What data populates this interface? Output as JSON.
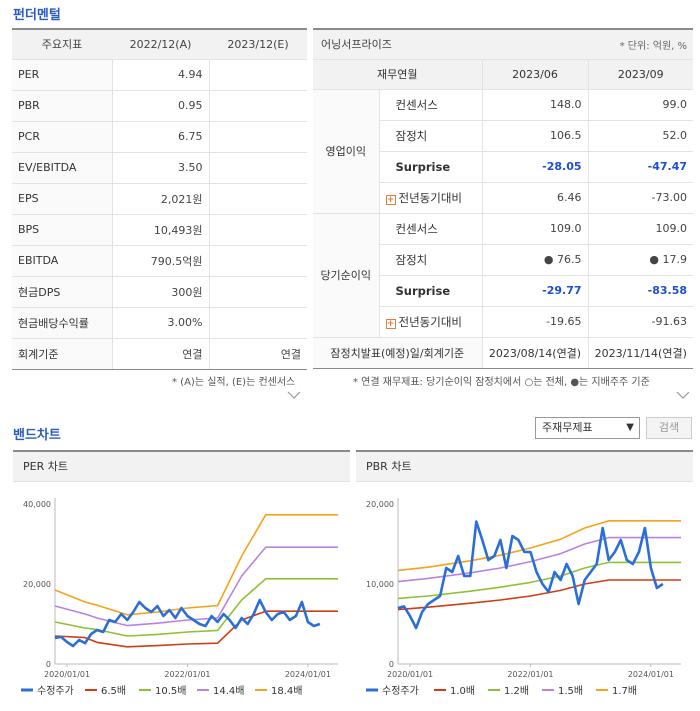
{
  "fundamental": {
    "title": "펀더멘털",
    "headers": [
      "주요지표",
      "2022/12(A)",
      "2023/12(E)"
    ],
    "rows": [
      {
        "label": "PER",
        "v1": "4.94",
        "v2": ""
      },
      {
        "label": "PBR",
        "v1": "0.95",
        "v2": ""
      },
      {
        "label": "PCR",
        "v1": "6.75",
        "v2": ""
      },
      {
        "label": "EV/EBITDA",
        "v1": "3.50",
        "v2": ""
      },
      {
        "label": "EPS",
        "v1": "2,021원",
        "v2": ""
      },
      {
        "label": "BPS",
        "v1": "10,493원",
        "v2": ""
      },
      {
        "label": "EBITDA",
        "v1": "790.5억원",
        "v2": ""
      },
      {
        "label": "현금DPS",
        "v1": "300원",
        "v2": ""
      },
      {
        "label": "현금배당수익률",
        "v1": "3.00%",
        "v2": ""
      },
      {
        "label": "회계기준",
        "v1": "연결",
        "v2": "연결"
      }
    ],
    "note": "* (A)는 실적, (E)는 컨센서스"
  },
  "earnings": {
    "title": "어닝서프라이즈",
    "unit": "* 단위: 억원, %",
    "subheaders": [
      "재무연월",
      "2023/06",
      "2023/09"
    ],
    "groups": [
      {
        "name": "영업이익",
        "rows": [
          {
            "item": "컨센서스",
            "v1": "148.0",
            "v2": "99.0",
            "kind": "plain"
          },
          {
            "item": "잠정치",
            "v1": "106.5",
            "v2": "52.0",
            "kind": "plain"
          },
          {
            "item": "Surprise",
            "v1": "-28.05",
            "v2": "-47.47",
            "kind": "surprise"
          },
          {
            "item": "전년동기대비",
            "v1": "6.46",
            "v2": "-73.00",
            "kind": "yoy"
          }
        ]
      },
      {
        "name": "당기순이익",
        "rows": [
          {
            "item": "컨센서스",
            "v1": "109.0",
            "v2": "109.0",
            "kind": "plain"
          },
          {
            "item": "잠정치",
            "v1": "● 76.5",
            "v2": "● 17.9",
            "kind": "plain"
          },
          {
            "item": "Surprise",
            "v1": "-29.77",
            "v2": "-83.58",
            "kind": "surprise"
          },
          {
            "item": "전년동기대비",
            "v1": "-19.65",
            "v2": "-91.63",
            "kind": "yoy"
          }
        ]
      }
    ],
    "footer": {
      "label": "잠정치발표(예정)일/회계기준",
      "v1": "2023/08/14(연결)",
      "v2": "2023/11/14(연결)"
    },
    "note": "* 연결 재무제표: 당기순이익 잠정치에서 ○는 전체, ●는 지배주주 기준"
  },
  "band": {
    "title": "밴드차트",
    "select_value": "주재무제표",
    "search_label": "검색"
  },
  "chart_data": [
    {
      "type": "line",
      "title": "PER 차트",
      "x_ticks": [
        "2020/01/01",
        "2022/01/01",
        "2024/01/01"
      ],
      "x_tick_years": [
        2020,
        2022,
        2024
      ],
      "xlim": [
        2019.8,
        2024.5
      ],
      "ylim": [
        0,
        40000
      ],
      "y_ticks": [
        "0",
        "20,000",
        "40,000"
      ],
      "y_tick_values": [
        0,
        20000,
        40000
      ],
      "legend_position": "bottom",
      "series": [
        {
          "name": "수정주가",
          "color": "#2b6fd6",
          "width": 2.6,
          "x": [
            2019.8,
            2019.9,
            2020.0,
            2020.1,
            2020.2,
            2020.3,
            2020.4,
            2020.5,
            2020.6,
            2020.7,
            2020.8,
            2020.9,
            2021.0,
            2021.1,
            2021.2,
            2021.3,
            2021.4,
            2021.5,
            2021.6,
            2021.7,
            2021.8,
            2021.9,
            2022.0,
            2022.1,
            2022.2,
            2022.3,
            2022.4,
            2022.5,
            2022.6,
            2022.7,
            2022.8,
            2022.9,
            2023.0,
            2023.1,
            2023.2,
            2023.3,
            2023.4,
            2023.5,
            2023.6,
            2023.7,
            2023.8,
            2023.9,
            2024.0,
            2024.1,
            2024.2
          ],
          "values": [
            6500,
            6800,
            5500,
            4500,
            6000,
            5200,
            7500,
            8500,
            8000,
            11000,
            10500,
            12500,
            11000,
            13000,
            15500,
            14000,
            13000,
            14500,
            12000,
            13500,
            11500,
            14000,
            12000,
            11000,
            10000,
            9500,
            12000,
            10500,
            12500,
            11000,
            9000,
            11500,
            10000,
            12500,
            16000,
            13000,
            11000,
            12500,
            13000,
            11000,
            12000,
            15500,
            10500,
            9500,
            10000
          ]
        },
        {
          "name": "6.5배",
          "color": "#d23c12",
          "width": 1.6,
          "x": [
            2019.8,
            2020.3,
            2020.5,
            2021.0,
            2021.5,
            2022.0,
            2022.5,
            2022.9,
            2023.3,
            2024.5
          ],
          "values": [
            7000,
            6600,
            5400,
            4300,
            4600,
            5000,
            5200,
            11000,
            13200,
            13200
          ]
        },
        {
          "name": "10.5배",
          "color": "#8fc232",
          "width": 1.6,
          "x": [
            2019.8,
            2020.3,
            2020.5,
            2021.0,
            2021.5,
            2022.0,
            2022.5,
            2022.9,
            2023.3,
            2024.5
          ],
          "values": [
            10500,
            9000,
            8600,
            7000,
            7400,
            8000,
            8400,
            16000,
            21300,
            21300
          ]
        },
        {
          "name": "14.4배",
          "color": "#b883e0",
          "width": 1.6,
          "x": [
            2019.8,
            2020.3,
            2020.5,
            2021.0,
            2021.5,
            2022.0,
            2022.5,
            2022.9,
            2023.3,
            2024.5
          ],
          "values": [
            14500,
            12500,
            11500,
            9600,
            10200,
            11000,
            11500,
            22000,
            29200,
            29200
          ]
        },
        {
          "name": "18.4배",
          "color": "#f7a21b",
          "width": 1.6,
          "x": [
            2019.8,
            2020.3,
            2020.5,
            2021.0,
            2021.5,
            2022.0,
            2022.5,
            2022.9,
            2023.3,
            2024.5
          ],
          "values": [
            18500,
            15500,
            14700,
            12300,
            13000,
            14000,
            14600,
            27000,
            37300,
            37300
          ]
        }
      ]
    },
    {
      "type": "line",
      "title": "PBR 차트",
      "x_ticks": [
        "2020/01/01",
        "2022/01/01",
        "2024/01/01"
      ],
      "x_tick_years": [
        2020,
        2022,
        2024
      ],
      "xlim": [
        2019.8,
        2024.5
      ],
      "ylim": [
        0,
        20000
      ],
      "y_ticks": [
        "0",
        "10,000",
        "20,000"
      ],
      "y_tick_values": [
        0,
        10000,
        20000
      ],
      "legend_position": "bottom",
      "series": [
        {
          "name": "수정주가",
          "color": "#2b6fd6",
          "width": 2.6,
          "x": [
            2019.8,
            2019.9,
            2020.0,
            2020.1,
            2020.2,
            2020.3,
            2020.4,
            2020.5,
            2020.6,
            2020.7,
            2020.8,
            2020.9,
            2021.0,
            2021.1,
            2021.2,
            2021.3,
            2021.4,
            2021.5,
            2021.6,
            2021.7,
            2021.8,
            2021.9,
            2022.0,
            2022.1,
            2022.2,
            2022.3,
            2022.4,
            2022.5,
            2022.6,
            2022.7,
            2022.8,
            2022.9,
            2023.0,
            2023.1,
            2023.2,
            2023.3,
            2023.4,
            2023.5,
            2023.6,
            2023.7,
            2023.8,
            2023.9,
            2024.0,
            2024.1,
            2024.2
          ],
          "values": [
            7000,
            7200,
            6000,
            4500,
            6500,
            7500,
            8000,
            8500,
            12000,
            11500,
            13500,
            11000,
            11000,
            17800,
            15500,
            13000,
            13500,
            15500,
            12000,
            16000,
            15500,
            14000,
            14000,
            11500,
            10000,
            9000,
            11500,
            10500,
            12500,
            11000,
            7500,
            10500,
            11500,
            12500,
            17000,
            13000,
            14000,
            15500,
            13000,
            12500,
            14000,
            17000,
            12000,
            9500,
            10000
          ]
        },
        {
          "name": "1.0배",
          "color": "#d23c12",
          "width": 1.6,
          "x": [
            2019.8,
            2020.3,
            2021.0,
            2021.5,
            2022.0,
            2022.5,
            2022.9,
            2023.3,
            2024.5
          ],
          "values": [
            6800,
            7100,
            7600,
            8000,
            8500,
            9200,
            10000,
            10500,
            10500
          ]
        },
        {
          "name": "1.2배",
          "color": "#8fc232",
          "width": 1.6,
          "x": [
            2019.8,
            2020.3,
            2021.0,
            2021.5,
            2022.0,
            2022.5,
            2022.9,
            2023.3,
            2024.5
          ],
          "values": [
            8200,
            8500,
            9100,
            9600,
            10200,
            11000,
            12000,
            12700,
            12700
          ]
        },
        {
          "name": "1.5배",
          "color": "#b883e0",
          "width": 1.6,
          "x": [
            2019.8,
            2020.3,
            2021.0,
            2021.5,
            2022.0,
            2022.5,
            2022.9,
            2023.3,
            2024.5
          ],
          "values": [
            10300,
            10700,
            11400,
            12000,
            12800,
            13800,
            15000,
            15800,
            15800
          ]
        },
        {
          "name": "1.7배",
          "color": "#f7a21b",
          "width": 1.6,
          "x": [
            2019.8,
            2020.3,
            2021.0,
            2021.5,
            2022.0,
            2022.5,
            2022.9,
            2023.3,
            2024.5
          ],
          "values": [
            11700,
            12100,
            12900,
            13600,
            14500,
            15600,
            17000,
            17900,
            17900
          ]
        }
      ]
    }
  ]
}
